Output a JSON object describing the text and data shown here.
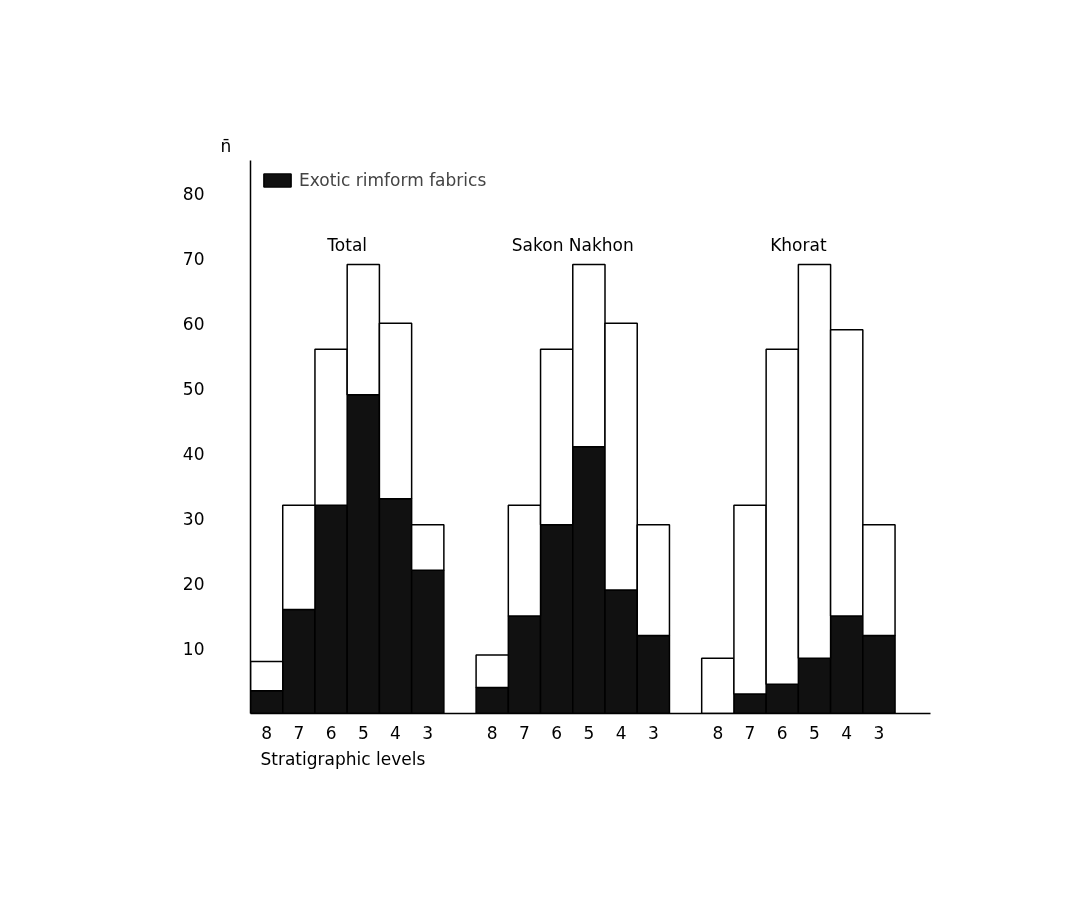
{
  "chart_data": {
    "type": "bar",
    "stacked": true,
    "ylabel": "n̄",
    "xlabel": "Stratigraphic levels",
    "categories": [
      "8",
      "7",
      "6",
      "5",
      "4",
      "3",
      null,
      "8",
      "7",
      "6",
      "5",
      "4",
      "3",
      null,
      "8",
      "7",
      "6",
      "5",
      "4",
      "3"
    ],
    "series": [
      {
        "name": "Exotic rimform fabrics",
        "color": "#111111",
        "values": [
          3.5,
          16,
          32,
          49,
          33,
          22,
          null,
          4,
          15,
          29,
          41,
          19,
          12,
          null,
          0,
          3,
          4.5,
          8.5,
          15,
          12
        ]
      },
      {
        "color": "#ffffff",
        "values": [
          4.5,
          16,
          24,
          20,
          27,
          7,
          null,
          5,
          17,
          27,
          28,
          41,
          17,
          null,
          8.5,
          29,
          51.5,
          60.5,
          44,
          17
        ]
      }
    ],
    "annotations": [
      "Total",
      "Sakon Nakhon",
      "Khorat"
    ],
    "ylim": [
      0,
      85
    ],
    "yticks": [
      10,
      20,
      30,
      40,
      50,
      60,
      70,
      80
    ],
    "grid": false,
    "legend": "top left"
  }
}
